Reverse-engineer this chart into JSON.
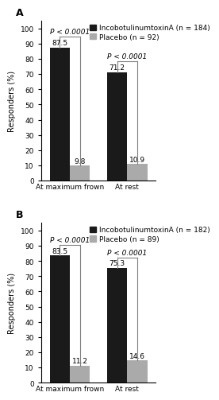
{
  "panel_A": {
    "label": "A",
    "legend_drug": "IncobotulinumtoxinA (n = 184)",
    "legend_placebo": "Placebo (n = 92)",
    "groups": [
      "At maximum frown",
      "At rest"
    ],
    "drug_values": [
      87.5,
      71.2
    ],
    "placebo_values": [
      9.8,
      10.9
    ],
    "pvalues": [
      "P < 0.0001",
      "P < 0.0001"
    ],
    "ylim": [
      0,
      105
    ],
    "yticks": [
      0,
      10,
      20,
      30,
      40,
      50,
      60,
      70,
      80,
      90,
      100
    ]
  },
  "panel_B": {
    "label": "B",
    "legend_drug": "IncobotulinumtoxinA (n = 182)",
    "legend_placebo": "Placebo (n = 89)",
    "groups": [
      "At maximum frown",
      "At rest"
    ],
    "drug_values": [
      83.5,
      75.3
    ],
    "placebo_values": [
      11.2,
      14.6
    ],
    "pvalues": [
      "P < 0.0001",
      "P < 0.0001"
    ],
    "ylim": [
      0,
      105
    ],
    "yticks": [
      0,
      10,
      20,
      30,
      40,
      50,
      60,
      70,
      80,
      90,
      100
    ]
  },
  "drug_color": "#1a1a1a",
  "placebo_color": "#aaaaaa",
  "ylabel": "Responders (%)",
  "bar_width": 0.35,
  "fontsize_label": 7,
  "fontsize_tick": 6.5,
  "fontsize_legend": 6.5,
  "fontsize_pval": 6.5,
  "fontsize_barval": 6.5,
  "fontsize_panel": 9
}
